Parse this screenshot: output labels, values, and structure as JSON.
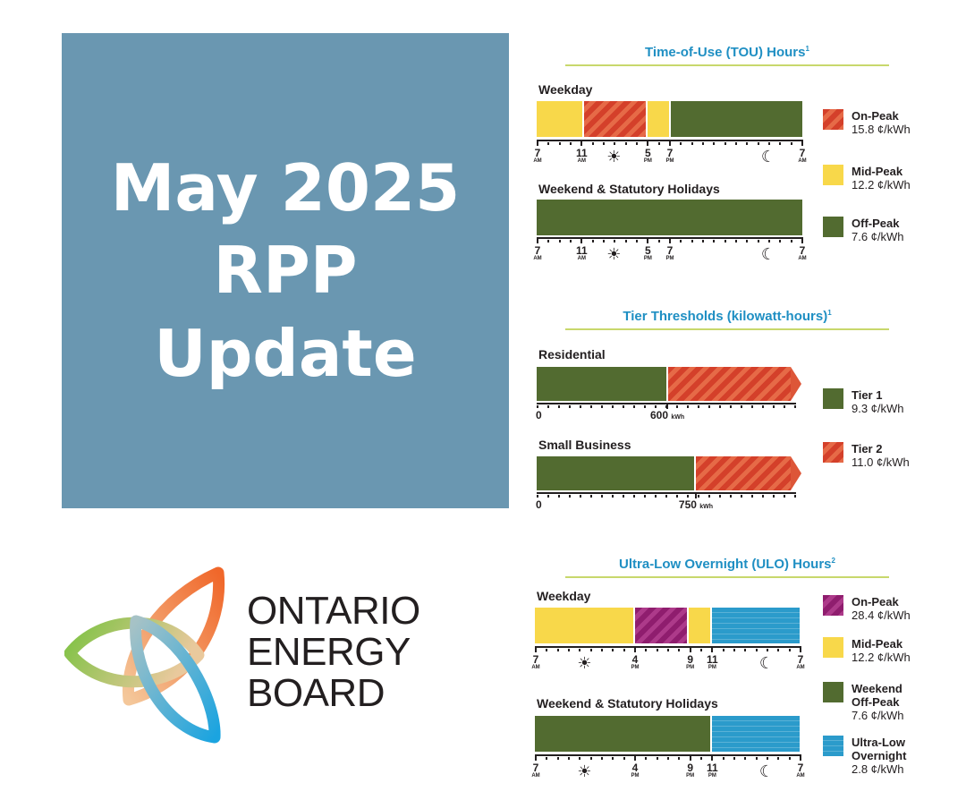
{
  "title": {
    "line1": "May 2025",
    "line2": "RPP",
    "line3": "Update"
  },
  "org": {
    "line1": "ONTARIO",
    "line2": "ENERGY",
    "line3": "BOARD"
  },
  "colors": {
    "title_box": "#6a97b1",
    "section_title": "#1f8fc3",
    "on_peak": "#d4402a",
    "mid_peak": "#f8d84a",
    "off_peak": "#526b30",
    "ulo_on_peak": "#8f1d6e",
    "ultra_low": "#2b9bcb"
  },
  "tou": {
    "title": "Time-of-Use (TOU) Hours",
    "sup": "1",
    "weekday_label": "Weekday",
    "weekend_label": "Weekend & Statutory Holidays",
    "legend": [
      {
        "name": "On-Peak",
        "price": "15.8 ¢/kWh"
      },
      {
        "name": "Mid-Peak",
        "price": "12.2 ¢/kWh"
      },
      {
        "name": "Off-Peak",
        "price": "7.6 ¢/kWh"
      }
    ],
    "ticks": [
      {
        "hour": "7",
        "ampm": "AM"
      },
      {
        "hour": "11",
        "ampm": "AM"
      },
      {
        "hour": "5",
        "ampm": "PM"
      },
      {
        "hour": "7",
        "ampm": "PM"
      },
      {
        "hour": "7",
        "ampm": "AM"
      }
    ]
  },
  "tier": {
    "title": "Tier Thresholds (kilowatt-hours)",
    "sup": "1",
    "residential_label": "Residential",
    "small_business_label": "Small Business",
    "zero": "0",
    "residential_threshold": "600",
    "small_business_threshold": "750",
    "unit": "kWh",
    "legend": [
      {
        "name": "Tier 1",
        "price": "9.3 ¢/kWh"
      },
      {
        "name": "Tier 2",
        "price": "11.0 ¢/kWh"
      }
    ]
  },
  "ulo": {
    "title": "Ultra-Low Overnight (ULO) Hours",
    "sup": "2",
    "weekday_label": "Weekday",
    "weekend_label": "Weekend & Statutory Holidays",
    "legend": [
      {
        "name": "On-Peak",
        "price": "28.4 ¢/kWh"
      },
      {
        "name": "Mid-Peak",
        "price": "12.2 ¢/kWh"
      },
      {
        "name1": "Weekend",
        "name2": "Off-Peak",
        "price": "7.6 ¢/kWh"
      },
      {
        "name1": "Ultra-Low",
        "name2": "Overnight",
        "price": "2.8 ¢/kWh"
      }
    ],
    "ticks": [
      {
        "hour": "7",
        "ampm": "AM"
      },
      {
        "hour": "4",
        "ampm": "PM"
      },
      {
        "hour": "9",
        "ampm": "PM"
      },
      {
        "hour": "11",
        "ampm": "PM"
      },
      {
        "hour": "7",
        "ampm": "AM"
      }
    ]
  }
}
